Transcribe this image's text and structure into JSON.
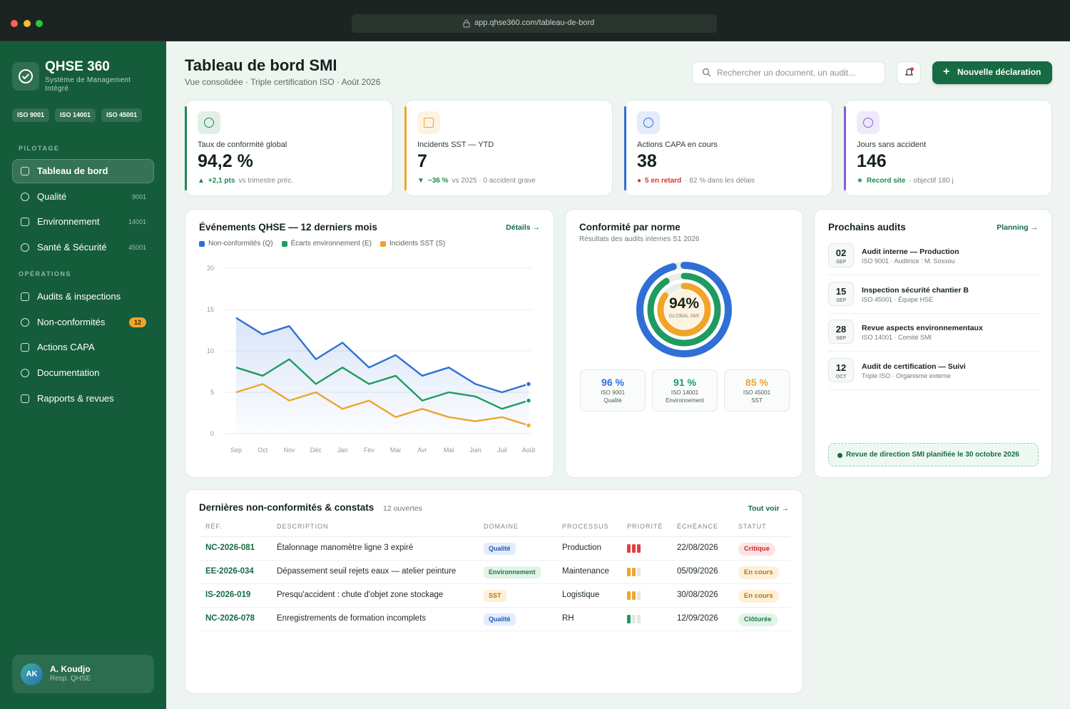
{
  "browser": {
    "url": "app.qhse360.com/tableau-de-bord"
  },
  "sidebar": {
    "brand": "QHSE 360",
    "tagline": "Système de Management Intégré",
    "badges": [
      "ISO 9001",
      "ISO 14001",
      "ISO 45001"
    ],
    "sections": [
      {
        "title": "PILOTAGE",
        "items": [
          {
            "label": "Tableau de bord",
            "active": true
          },
          {
            "label": "Qualité",
            "meta": "9001"
          },
          {
            "label": "Environnement",
            "meta": "14001"
          },
          {
            "label": "Santé & Sécurité",
            "meta": "45001"
          }
        ]
      },
      {
        "title": "OPÉRATIONS",
        "items": [
          {
            "label": "Audits & inspections"
          },
          {
            "label": "Non-conformités",
            "badge": "12"
          },
          {
            "label": "Actions CAPA"
          },
          {
            "label": "Documentation"
          },
          {
            "label": "Rapports & revues"
          }
        ]
      }
    ],
    "user": {
      "initials": "AK",
      "name": "A. Koudjo",
      "role": "Resp. QHSE"
    }
  },
  "header": {
    "title": "Tableau de bord SMI",
    "subtitle": "Vue consolidée · Triple certification ISO · Août 2026",
    "search_placeholder": "Rechercher un document, un audit...",
    "button": "Nouvelle déclaration"
  },
  "kpis": [
    {
      "label": "Taux de conformité global",
      "value": "94,2 %",
      "marker": "▲",
      "delta": "+2,1 pts",
      "note": "vs trimestre préc.",
      "color": "#1f8a50",
      "delta_color": "#1f8a50"
    },
    {
      "label": "Incidents SST — YTD",
      "value": "7",
      "marker": "▼",
      "delta": "−36 %",
      "note": "vs 2025 · 0 accident grave",
      "color": "#f0a52a",
      "delta_color": "#1f8a50"
    },
    {
      "label": "Actions CAPA en cours",
      "value": "38",
      "marker": "●",
      "delta": "5 en retard",
      "note": "· 82 % dans les délais",
      "color": "#2f6fd6",
      "delta_color": "#d93636"
    },
    {
      "label": "Jours sans accident",
      "value": "146",
      "marker": "★",
      "delta": "Record site",
      "note": "· objectif 180 j",
      "color": "#8a5cd6",
      "delta_color": "#1f8a50"
    }
  ],
  "links": {
    "events": "Détails →",
    "audits": "Planning →",
    "table": "Tout voir →"
  },
  "chart_data": [
    {
      "type": "line",
      "title": "Événements QHSE — 12 derniers mois",
      "categories": [
        "Sep",
        "Oct",
        "Nov",
        "Déc",
        "Jan",
        "Fév",
        "Mar",
        "Avr",
        "Mai",
        "Juin",
        "Juil",
        "Août"
      ],
      "series": [
        {
          "name": "Non-conformités (Q)",
          "color": "#2f6fd6",
          "values": [
            14,
            12,
            13,
            9,
            11,
            8,
            9.5,
            7,
            8,
            6,
            5,
            6
          ]
        },
        {
          "name": "Écarts environnement (E)",
          "color": "#1f9b60",
          "values": [
            8,
            7,
            9,
            6,
            8,
            6,
            7,
            4,
            5,
            4.5,
            3,
            4
          ]
        },
        {
          "name": "Incidents SST (S)",
          "color": "#f0a52a",
          "values": [
            5,
            6,
            4,
            5,
            3,
            4,
            2,
            3,
            2,
            1.5,
            2,
            1
          ]
        }
      ],
      "ylim": [
        0,
        20
      ],
      "yticks": [
        0,
        5,
        10,
        15,
        20
      ],
      "grid": true
    },
    {
      "type": "radial",
      "title": "Conformité par norme",
      "subtitle": "Résultats des audits internes S1 2026",
      "categories": [
        "ISO 9001",
        "ISO 14001",
        "ISO 45001"
      ],
      "sublabels": [
        "Qualité",
        "Environnement",
        "SST"
      ],
      "values": [
        96,
        91,
        85
      ],
      "value_labels": [
        "96 %",
        "91 %",
        "85 %"
      ],
      "colors": [
        "#2f6fd6",
        "#1f9b60",
        "#f0a52a"
      ],
      "ylim": [
        0,
        100
      ],
      "center": {
        "value": 94,
        "label": "94%"
      },
      "center_caption": "GLOBAL SMI"
    }
  ],
  "audits": {
    "title": "Prochains audits",
    "items": [
      {
        "day": "02",
        "month": "SEP",
        "title": "Audit interne — Production",
        "meta": "ISO 9001 · Auditrice : M. Sossou"
      },
      {
        "day": "15",
        "month": "SEP",
        "title": "Inspection sécurité chantier B",
        "meta": "ISO 45001 · Équipe HSE"
      },
      {
        "day": "28",
        "month": "SEP",
        "title": "Revue aspects environnementaux",
        "meta": "ISO 14001 · Comité SMI"
      },
      {
        "day": "12",
        "month": "OCT",
        "title": "Audit de certification — Suivi",
        "meta": "Triple ISO · Organisme externe"
      }
    ],
    "notice": "Revue de direction SMI planifiée le 30 octobre 2026"
  },
  "table": {
    "title": "Dernières non-conformités & constats",
    "count": "12 ouvertes",
    "columns": [
      "RÉF.",
      "DESCRIPTION",
      "DOMAINE",
      "PROCESSUS",
      "PRIORITÉ",
      "ÉCHÉANCE",
      "STATUT"
    ],
    "rows": [
      {
        "ref": "NC-2026-081",
        "description": "Étalonnage manomètre ligne 3 expiré",
        "domain": "Qualité",
        "domain_tone": "blue",
        "process": "Production",
        "priority": 3,
        "priority_tone": "red",
        "due": "22/08/2026",
        "status": "Critique",
        "status_tone": "red"
      },
      {
        "ref": "EE-2026-034",
        "description": "Dépassement seuil rejets eaux — atelier peinture",
        "domain": "Environnement",
        "domain_tone": "green",
        "process": "Maintenance",
        "priority": 2,
        "priority_tone": "orange",
        "due": "05/09/2026",
        "status": "En cours",
        "status_tone": "orange"
      },
      {
        "ref": "IS-2026-019",
        "description": "Presqu'accident : chute d'objet zone stockage",
        "domain": "SST",
        "domain_tone": "orange",
        "process": "Logistique",
        "priority": 2,
        "priority_tone": "orange",
        "due": "30/08/2026",
        "status": "En cours",
        "status_tone": "orange"
      },
      {
        "ref": "NC-2026-078",
        "description": "Enregistrements de formation incomplets",
        "domain": "Qualité",
        "domain_tone": "blue",
        "process": "RH",
        "priority": 1,
        "priority_tone": "green",
        "due": "12/09/2026",
        "status": "Clôturée",
        "status_tone": "green"
      }
    ]
  }
}
